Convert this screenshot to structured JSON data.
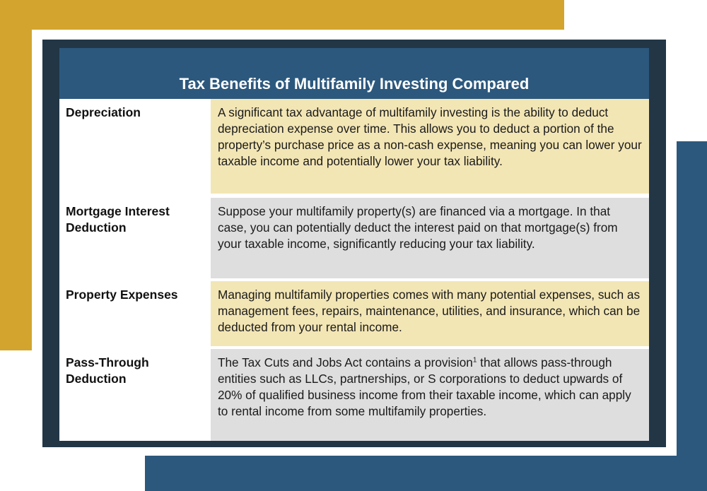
{
  "title": "Tax Benefits of Multifamily Investing Compared",
  "colors": {
    "gold": "#d3a52e",
    "navy": "#223646",
    "blue": "#2c587d",
    "row_gold": "#f3e6b5",
    "row_gray": "#dedede"
  },
  "rows": [
    {
      "label": "Depreciation",
      "description": "A significant tax advantage of multifamily investing is the ability to deduct depreciation expense over time. This allows you to deduct a portion of the property’s purchase price as a non-cash expense, meaning you can lower your taxable income and potentially lower your tax liability."
    },
    {
      "label": "Mortgage Interest Deduction",
      "description": "Suppose your multifamily property(s) are financed via a mortgage. In that case, you can potentially deduct the interest paid on that mortgage(s) from your taxable income, significantly reducing your tax liability."
    },
    {
      "label": "Property Expenses",
      "description": "Managing multifamily properties comes with many potential expenses, such as management fees, repairs, maintenance, utilities, and insurance, which can be deducted from your rental income."
    },
    {
      "label": "Pass-Through Deduction",
      "description_before": "The Tax Cuts and Jobs Act contains a provision",
      "footnote": "1",
      "description_after": " that allows pass-through entities such as LLCs, partnerships, or S corporations to deduct upwards of 20% of qualified business income from their taxable income, which can apply to rental income from some multifamily properties."
    }
  ]
}
